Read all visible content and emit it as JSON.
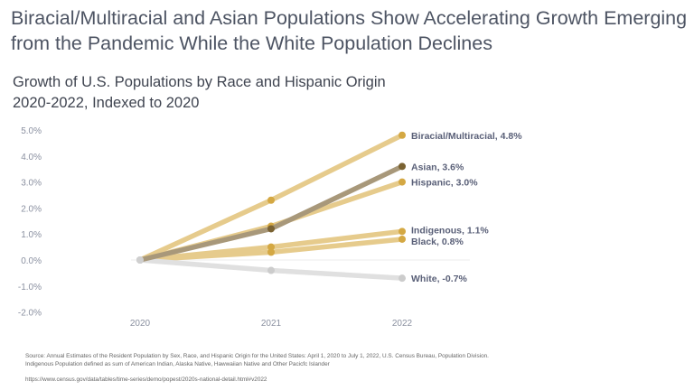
{
  "title": "Biracial/Multiracial and Asian Populations Show Accelerating Growth Emerging from the Pandemic While the White Population Declines",
  "subtitle_line1": "Growth of U.S. Populations by Race and Hispanic Origin",
  "subtitle_line2": "2020-2022, Indexed to 2020",
  "source_line1": "Source: Annual Estimates of the Resident Population by Sex, Race, and Hispanic Origin for the United States: April 1, 2020 to July 1, 2022, U.S. Census Bureau, Population Division.",
  "source_line2": "Indigenous Population defined as sum of American Indian, Alaska Native, Hawwaiian Native and Other Pacicfc Islander",
  "source_url": "https://www.census.gov/data/tables/time-series/demo/popest/2020s-national-detail.html#v2022",
  "chart_data": {
    "type": "line",
    "x": [
      "2020",
      "2021",
      "2022"
    ],
    "ylim": [
      -2,
      5
    ],
    "yticks": [
      "-2.0%",
      "-1.0%",
      "0.0%",
      "1.0%",
      "2.0%",
      "3.0%",
      "4.0%",
      "5.0%"
    ],
    "grid": "zero line only",
    "series": [
      {
        "name": "Biracial/Multiracial",
        "label": "Biracial/Multiracial, 4.8%",
        "values": [
          0,
          2.3,
          4.8
        ],
        "color": "#d4a843"
      },
      {
        "name": "Hispanic",
        "label": "Hispanic, 3.0%",
        "values": [
          0,
          1.3,
          3.0
        ],
        "color": "#d4a843"
      },
      {
        "name": "Indigenous",
        "label": "Indigenous, 1.1%",
        "values": [
          0,
          0.5,
          1.1
        ],
        "color": "#d4a843"
      },
      {
        "name": "Black",
        "label": "Black, 0.8%",
        "values": [
          0,
          0.3,
          0.8
        ],
        "color": "#d4a843"
      },
      {
        "name": "White",
        "label": "White, -0.7%",
        "values": [
          0,
          -0.4,
          -0.7
        ],
        "color": "#cccccc"
      },
      {
        "name": "Asian",
        "label": "Asian, 3.6%",
        "values": [
          0,
          1.2,
          3.6
        ],
        "color": "#7a6232"
      }
    ]
  }
}
